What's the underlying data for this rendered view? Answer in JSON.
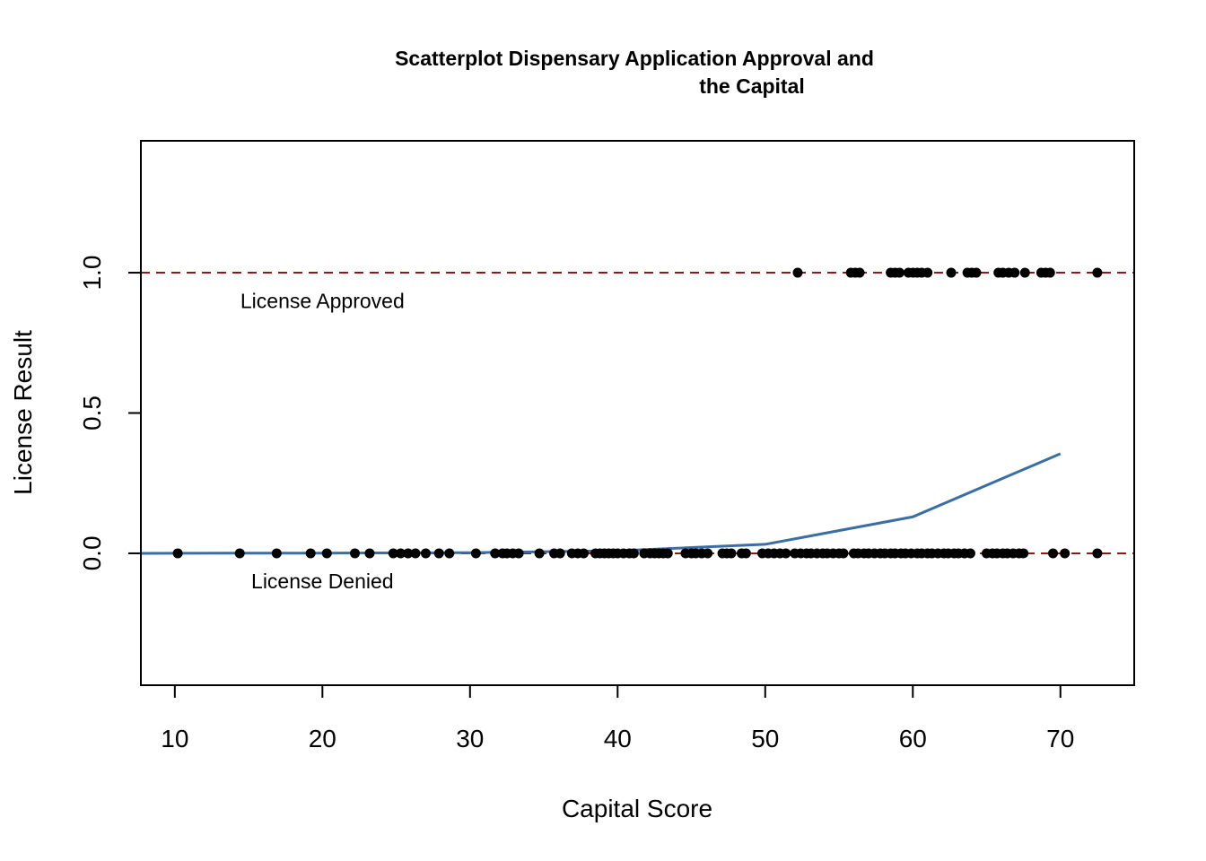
{
  "chart_data": {
    "type": "scatter",
    "title_line1": "Scatterplot Dispensary Application Approval and",
    "title_line2": "the Capital",
    "xlabel": "Capital Score",
    "ylabel": "License Result",
    "xlim": [
      7.7,
      75
    ],
    "ylim": [
      -0.47,
      1.47
    ],
    "x_ticks": [
      10,
      20,
      30,
      40,
      50,
      60,
      70
    ],
    "x_tick_labels": [
      "10",
      "20",
      "30",
      "40",
      "50",
      "60",
      "70"
    ],
    "y_ticks": [
      0.0,
      0.5,
      1.0
    ],
    "y_tick_labels": [
      "0.0",
      "0.5",
      "1.0"
    ],
    "grid": false,
    "reference_lines": [
      {
        "y": 1.0,
        "style": "dashed",
        "color": "#8b1a1a"
      },
      {
        "y": 0.0,
        "style": "dashed",
        "color": "#8b1a1a"
      }
    ],
    "annotations": [
      {
        "text": "License Approved",
        "x": 20,
        "y": 0.9
      },
      {
        "text": "License Denied",
        "x": 20,
        "y": -0.1
      }
    ],
    "colors": {
      "points": "#000000",
      "curve": "#3a6ea5",
      "reference": "#8b1a1a"
    },
    "points_approved_x": [
      52.2,
      55.8,
      56.1,
      56.4,
      58.5,
      58.8,
      59.1,
      59.7,
      60.0,
      60.3,
      60.6,
      61.0,
      62.6,
      63.7,
      64.0,
      64.3,
      65.8,
      66.1,
      66.5,
      66.9,
      67.6,
      68.7,
      69.0,
      69.3,
      72.5
    ],
    "points_denied_x": [
      10.2,
      14.4,
      16.9,
      19.2,
      20.3,
      22.2,
      23.2,
      24.8,
      25.3,
      25.8,
      26.3,
      27.0,
      27.9,
      28.6,
      30.4,
      31.7,
      32.2,
      32.5,
      32.9,
      33.3,
      34.7,
      35.7,
      36.1,
      36.9,
      37.3,
      37.7,
      38.5,
      38.8,
      39.1,
      39.4,
      39.7,
      40.0,
      40.4,
      40.8,
      41.1,
      41.8,
      42.2,
      42.5,
      42.8,
      43.1,
      43.4,
      44.6,
      45.0,
      45.3,
      45.7,
      46.1,
      47.1,
      47.4,
      47.7,
      48.4,
      48.7,
      49.8,
      50.2,
      50.6,
      51.0,
      51.4,
      52.0,
      52.4,
      52.8,
      53.1,
      53.5,
      53.9,
      54.2,
      54.6,
      55.0,
      55.3,
      56.0,
      56.3,
      56.7,
      57.0,
      57.4,
      57.8,
      58.1,
      58.5,
      58.8,
      59.2,
      59.5,
      59.9,
      60.3,
      60.6,
      61.0,
      61.3,
      61.7,
      62.1,
      62.4,
      62.8,
      63.1,
      63.5,
      63.9,
      65.0,
      65.4,
      65.7,
      66.1,
      66.4,
      66.8,
      67.2,
      67.5,
      69.5,
      70.3,
      72.5
    ],
    "curve": {
      "name": "",
      "x": [
        7.7,
        10,
        20,
        30,
        40,
        50,
        60,
        70
      ],
      "y": [
        0.0,
        0.0003,
        0.0008,
        0.0024,
        0.009,
        0.032,
        0.13,
        0.355
      ]
    }
  }
}
